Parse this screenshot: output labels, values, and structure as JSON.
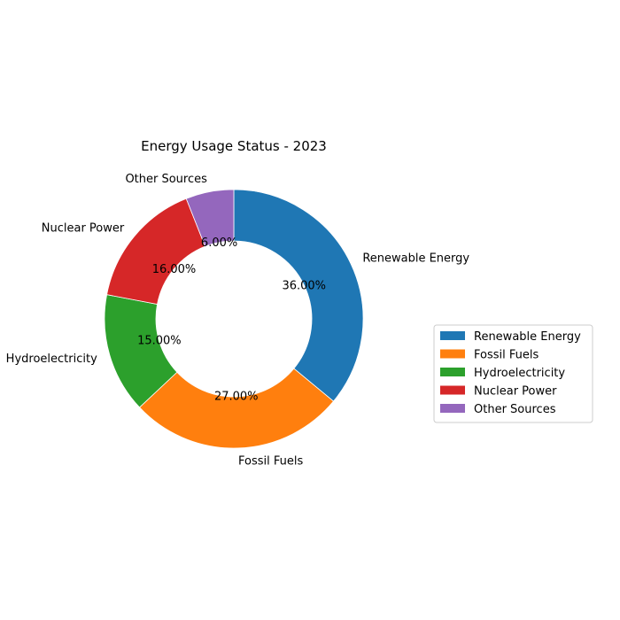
{
  "chart_data": {
    "type": "pie",
    "style": "donut",
    "title": "Energy Usage Status - 2023",
    "categories": [
      "Renewable Energy",
      "Fossil Fuels",
      "Hydroelectricity",
      "Nuclear Power",
      "Other Sources"
    ],
    "values": [
      36,
      27,
      15,
      16,
      6
    ],
    "percent_labels": [
      "36.00%",
      "27.00%",
      "15.00%",
      "16.00%",
      "6.00%"
    ],
    "colors": [
      "#1f77b4",
      "#ff7f0e",
      "#2ca02c",
      "#d62728",
      "#9467bd"
    ],
    "start_angle_deg": 90,
    "direction": "clockwise",
    "legend": {
      "position": "right",
      "entries": [
        "Renewable Energy",
        "Fossil Fuels",
        "Hydroelectricity",
        "Nuclear Power",
        "Other Sources"
      ]
    }
  }
}
